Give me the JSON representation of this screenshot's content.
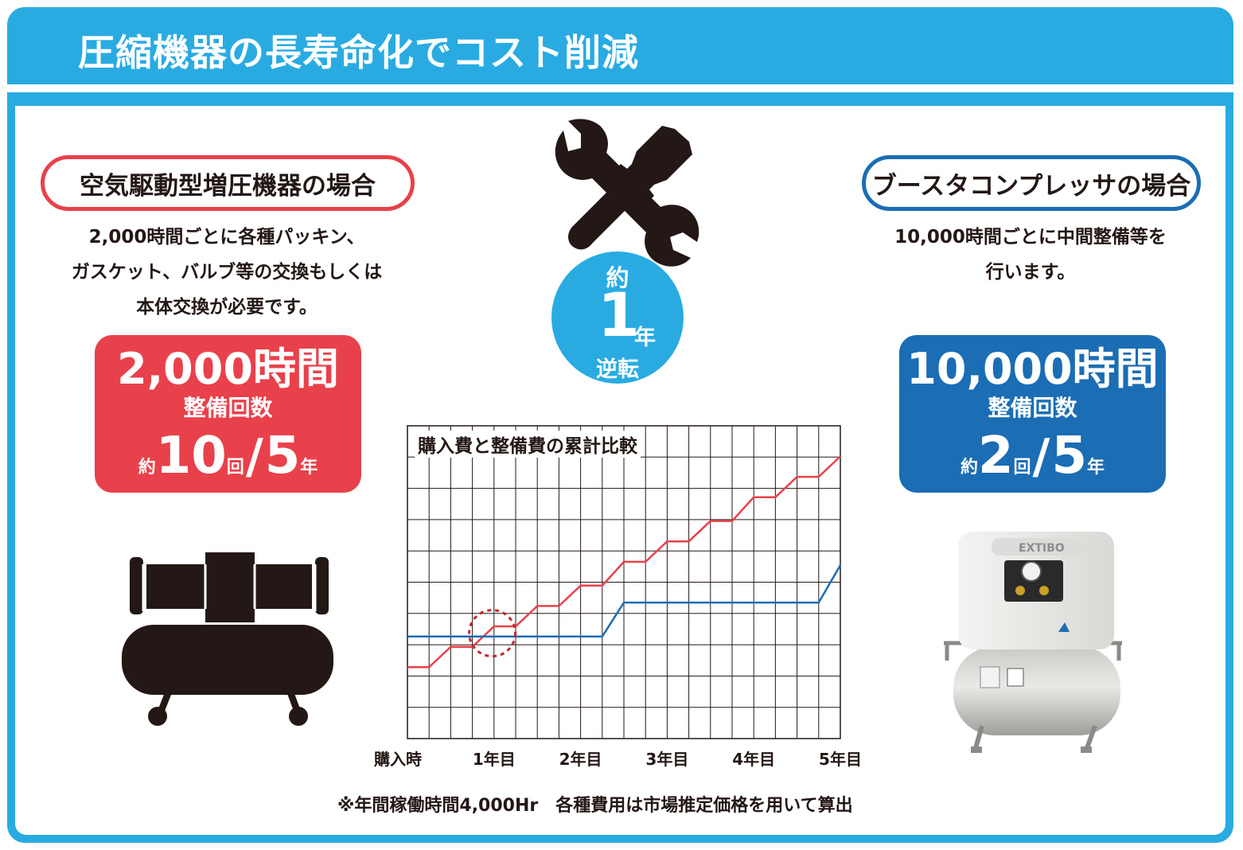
{
  "header": {
    "title": "圧縮機器の長寿命化でコスト削減"
  },
  "left": {
    "heading": "空気駆動型増圧機器の場合",
    "description": "2,000時間ごとに各種パッキン、\nガスケット、バルブ等の交換もしくは\n本体交換が必要です。",
    "box": {
      "hours": "2,000時間",
      "label": "整備回数",
      "prefix": "約",
      "count": "10",
      "count_unit": "回",
      "slash": "/",
      "years": "5",
      "year_unit": "年"
    }
  },
  "right": {
    "heading": "ブースタコンプレッサの場合",
    "description": "10,000時間ごとに中間整備等を\n行います。",
    "box": {
      "hours": "10,000時間",
      "label": "整備回数",
      "prefix": "約",
      "count": "2",
      "count_unit": "回",
      "slash": "/",
      "years": "5",
      "year_unit": "年"
    }
  },
  "center": {
    "icon": "wrench-screwdriver-icon",
    "badge": {
      "approx": "約",
      "number": "1",
      "unit": "年",
      "word": "逆転"
    }
  },
  "product": {
    "brand": "EXTIBO",
    "type": "compressor-photo"
  },
  "left_icon": "air-compressor-icon",
  "chart_data": {
    "type": "line",
    "title": "購入費と整備費の累計比較",
    "x_ticks": [
      "購入時",
      "1年目",
      "2年目",
      "3年目",
      "4年目",
      "5年目"
    ],
    "xlim": [
      0,
      5
    ],
    "grid": true,
    "series": [
      {
        "color": "#e8414b",
        "points": [
          [
            0,
            2.1
          ],
          [
            0.25,
            2.1
          ],
          [
            0.5,
            2.7
          ],
          [
            0.75,
            2.7
          ],
          [
            1.0,
            3.3
          ],
          [
            1.25,
            3.3
          ],
          [
            1.5,
            3.9
          ],
          [
            1.75,
            3.9
          ],
          [
            2.0,
            4.5
          ],
          [
            2.25,
            4.5
          ],
          [
            2.5,
            5.2
          ],
          [
            2.75,
            5.2
          ],
          [
            3.0,
            5.8
          ],
          [
            3.25,
            5.8
          ],
          [
            3.5,
            6.4
          ],
          [
            3.75,
            6.4
          ],
          [
            4.0,
            7.1
          ],
          [
            4.25,
            7.1
          ],
          [
            4.5,
            7.7
          ],
          [
            4.75,
            7.7
          ],
          [
            5.0,
            8.3
          ]
        ]
      },
      {
        "color": "#1b6db4",
        "points": [
          [
            0,
            3.0
          ],
          [
            2.25,
            3.0
          ],
          [
            2.5,
            4.0
          ],
          [
            4.75,
            4.0
          ],
          [
            5.0,
            5.1
          ]
        ]
      }
    ],
    "annotation": {
      "type": "dashed-circle",
      "x": 0.98,
      "y": 3.1,
      "color": "#c1272d"
    }
  },
  "footnote": "※年間稼働時間4,000Hr　各種費用は市場推定価格を用いて算出",
  "colors": {
    "frame": "#29abe2",
    "red": "#e8414b",
    "blue": "#1b6db4",
    "grid": "#231815"
  }
}
